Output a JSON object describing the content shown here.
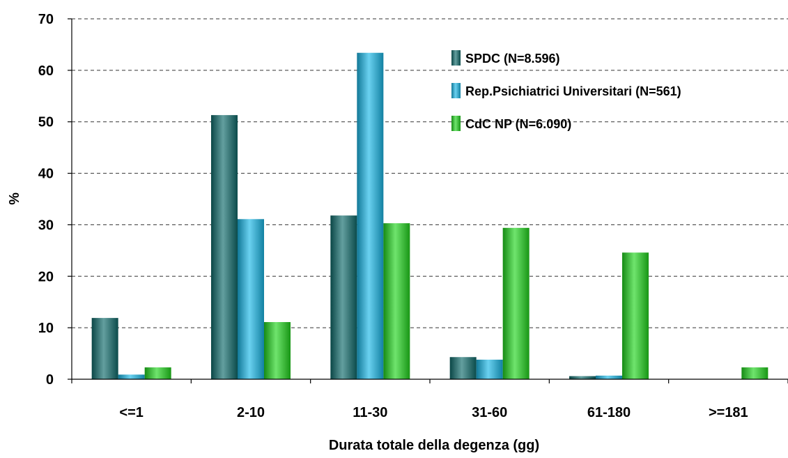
{
  "chart_data": {
    "type": "bar",
    "title": "",
    "xlabel": "Durata totale della degenza (gg)",
    "ylabel": "%",
    "categories": [
      "<=1",
      "2-10",
      "11-30",
      "31-60",
      "61-180",
      ">=181"
    ],
    "ylim": [
      0,
      70
    ],
    "yticks": [
      0,
      10,
      20,
      30,
      40,
      50,
      60,
      70
    ],
    "grid": true,
    "legend_position": "top-right",
    "series": [
      {
        "name": "SPDC (N=8.596)",
        "color": "#0f6b6b",
        "values": [
          11.9,
          51.3,
          31.8,
          4.3,
          0.6,
          0.0
        ]
      },
      {
        "name": "Rep.Psichiatrici Universitari (N=561)",
        "color": "#1ab8e8",
        "values": [
          0.9,
          31.1,
          63.4,
          3.8,
          0.7,
          0.0
        ]
      },
      {
        "name": "CdC NP (N=6.090)",
        "color": "#22d61e",
        "values": [
          2.3,
          11.1,
          30.3,
          29.4,
          24.6,
          2.3
        ]
      }
    ]
  }
}
